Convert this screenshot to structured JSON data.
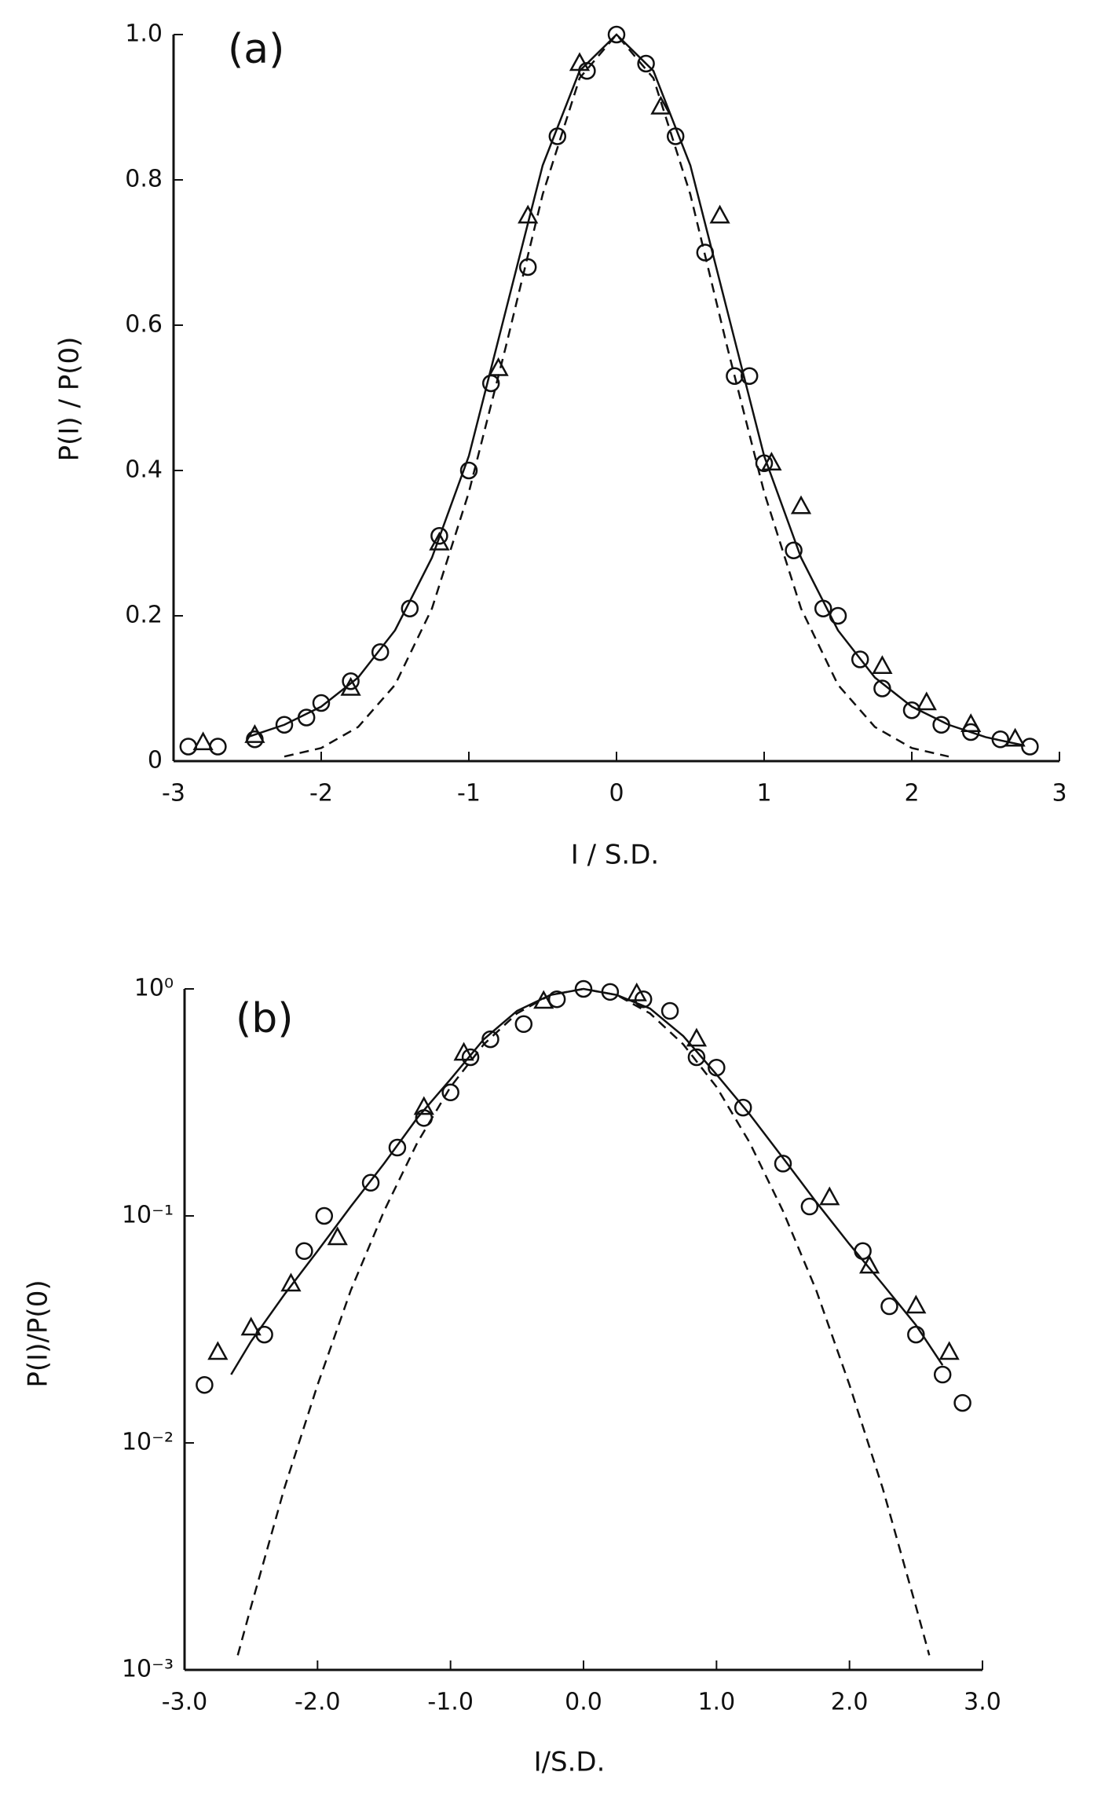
{
  "chart_data": [
    {
      "type": "line",
      "annotation": "(a)",
      "xlabel": "I / S.D.",
      "ylabel": "P(I) / P(0)",
      "xlim": [
        -3,
        3
      ],
      "xticks": [
        -3,
        -2,
        -1,
        0,
        1,
        2,
        3
      ],
      "ylim": [
        0,
        1
      ],
      "yticks": [
        0,
        0.2,
        0.4,
        0.6,
        0.8,
        {
          "value": 1,
          "label": "1.0"
        }
      ],
      "yscale": "linear",
      "series": [
        {
          "type": "scatter",
          "marker": "circle",
          "color": "#111",
          "x": [
            -2.9,
            -2.7,
            -2.45,
            -2.25,
            -2.1,
            -2.0,
            -1.8,
            -1.6,
            -1.4,
            -1.2,
            -1.0,
            -0.85,
            -0.6,
            -0.4,
            -0.2,
            0,
            0.2,
            0.4,
            0.6,
            0.8,
            0.9,
            1.0,
            1.2,
            1.4,
            1.5,
            1.65,
            1.8,
            2.0,
            2.2,
            2.4,
            2.6,
            2.8
          ],
          "values": [
            0.02,
            0.02,
            0.03,
            0.05,
            0.06,
            0.08,
            0.11,
            0.15,
            0.21,
            0.31,
            0.4,
            0.52,
            0.68,
            0.86,
            0.95,
            1.0,
            0.96,
            0.86,
            0.7,
            0.53,
            0.53,
            0.41,
            0.29,
            0.21,
            0.2,
            0.14,
            0.1,
            0.07,
            0.05,
            0.04,
            0.03,
            0.02
          ]
        },
        {
          "type": "scatter",
          "marker": "triangle",
          "color": "#111",
          "x": [
            -2.8,
            -2.45,
            -1.8,
            -1.2,
            -0.8,
            -0.6,
            -0.25,
            0.3,
            0.7,
            1.05,
            1.25,
            1.8,
            2.1,
            2.4,
            2.7
          ],
          "values": [
            0.025,
            0.035,
            0.1,
            0.3,
            0.54,
            0.75,
            0.96,
            0.9,
            0.75,
            0.41,
            0.35,
            0.13,
            0.08,
            0.05,
            0.03
          ]
        },
        {
          "type": "line",
          "linestyle": "solid",
          "color": "#111",
          "x": [
            -2.5,
            -2.25,
            -2,
            -1.75,
            -1.5,
            -1.25,
            -1,
            -0.75,
            -0.5,
            -0.25,
            0,
            0.25,
            0.5,
            0.75,
            1,
            1.25,
            1.5,
            1.75,
            2,
            2.25,
            2.5,
            2.75
          ],
          "values": [
            0.033,
            0.05,
            0.075,
            0.115,
            0.18,
            0.28,
            0.42,
            0.62,
            0.82,
            0.95,
            1,
            0.95,
            0.82,
            0.62,
            0.42,
            0.28,
            0.18,
            0.115,
            0.075,
            0.05,
            0.033,
            0.022
          ]
        },
        {
          "type": "line",
          "linestyle": "dashed",
          "color": "#111",
          "x": [
            -2.25,
            -2,
            -1.75,
            -1.5,
            -1.25,
            -1,
            -0.75,
            -0.5,
            -0.25,
            0,
            0.25,
            0.5,
            0.75,
            1,
            1.25,
            1.5,
            1.75,
            2,
            2.25
          ],
          "values": [
            0.0063,
            0.018,
            0.047,
            0.105,
            0.21,
            0.37,
            0.57,
            0.78,
            0.94,
            1,
            0.94,
            0.78,
            0.57,
            0.37,
            0.21,
            0.105,
            0.047,
            0.018,
            0.0063
          ]
        }
      ]
    },
    {
      "type": "line",
      "annotation": "(b)",
      "xlabel": "I/S.D.",
      "ylabel": "P(I)/P(0)",
      "xlim": [
        -3,
        3
      ],
      "xticks": [
        {
          "value": -3,
          "label": "-3.0"
        },
        {
          "value": -2,
          "label": "-2.0"
        },
        {
          "value": -1,
          "label": "-1.0"
        },
        {
          "value": 0,
          "label": "0.0"
        },
        {
          "value": 1,
          "label": "1.0"
        },
        {
          "value": 2,
          "label": "2.0"
        },
        {
          "value": 3,
          "label": "3.0"
        }
      ],
      "ylim": [
        0.001,
        1
      ],
      "yticks": [
        {
          "value": 0.001,
          "label": "10⁻³"
        },
        {
          "value": 0.01,
          "label": "10⁻²"
        },
        {
          "value": 0.1,
          "label": "10⁻¹"
        },
        {
          "value": 1,
          "label": "10⁰"
        }
      ],
      "yscale": "log",
      "series": [
        {
          "type": "scatter",
          "marker": "circle",
          "color": "#111",
          "x": [
            -2.85,
            -2.4,
            -2.1,
            -1.95,
            -1.6,
            -1.4,
            -1.2,
            -1.0,
            -0.85,
            -0.7,
            -0.45,
            -0.2,
            0,
            0.2,
            0.45,
            0.65,
            0.85,
            1.0,
            1.2,
            1.5,
            1.7,
            2.1,
            2.3,
            2.5,
            2.7,
            2.85
          ],
          "values": [
            0.018,
            0.03,
            0.07,
            0.1,
            0.14,
            0.2,
            0.27,
            0.35,
            0.5,
            0.6,
            0.7,
            0.9,
            1.0,
            0.97,
            0.9,
            0.8,
            0.5,
            0.45,
            0.3,
            0.17,
            0.11,
            0.07,
            0.04,
            0.03,
            0.02,
            0.015
          ]
        },
        {
          "type": "scatter",
          "marker": "triangle",
          "color": "#111",
          "x": [
            -2.75,
            -2.5,
            -2.2,
            -1.85,
            -1.2,
            -0.9,
            -0.3,
            0.4,
            0.85,
            1.85,
            2.15,
            2.5,
            2.75
          ],
          "values": [
            0.025,
            0.032,
            0.05,
            0.08,
            0.3,
            0.52,
            0.88,
            0.95,
            0.6,
            0.12,
            0.06,
            0.04,
            0.025
          ]
        },
        {
          "type": "line",
          "linestyle": "solid",
          "color": "#111",
          "x": [
            -2.65,
            -2.5,
            -2.25,
            -2,
            -1.75,
            -1.5,
            -1.25,
            -1,
            -0.75,
            -0.5,
            -0.25,
            0,
            0.25,
            0.5,
            0.75,
            1,
            1.25,
            1.5,
            1.75,
            2,
            2.25,
            2.5,
            2.7
          ],
          "values": [
            0.02,
            0.028,
            0.045,
            0.07,
            0.11,
            0.17,
            0.27,
            0.4,
            0.6,
            0.8,
            0.94,
            1,
            0.94,
            0.82,
            0.62,
            0.42,
            0.28,
            0.18,
            0.115,
            0.075,
            0.05,
            0.033,
            0.022
          ]
        },
        {
          "type": "line",
          "linestyle": "dashed",
          "color": "#111",
          "x": [
            -2.6,
            -2.5,
            -2.25,
            -2,
            -1.75,
            -1.5,
            -1.25,
            -1,
            -0.75,
            -0.5,
            -0.25,
            0,
            0.25,
            0.5,
            0.75,
            1,
            1.25,
            1.5,
            1.75,
            2,
            2.25,
            2.5,
            2.6
          ],
          "values": [
            0.00116,
            0.0019,
            0.0063,
            0.018,
            0.047,
            0.105,
            0.21,
            0.37,
            0.57,
            0.78,
            0.94,
            1,
            0.94,
            0.78,
            0.57,
            0.37,
            0.21,
            0.105,
            0.047,
            0.018,
            0.0063,
            0.0019,
            0.00116
          ]
        }
      ]
    }
  ]
}
